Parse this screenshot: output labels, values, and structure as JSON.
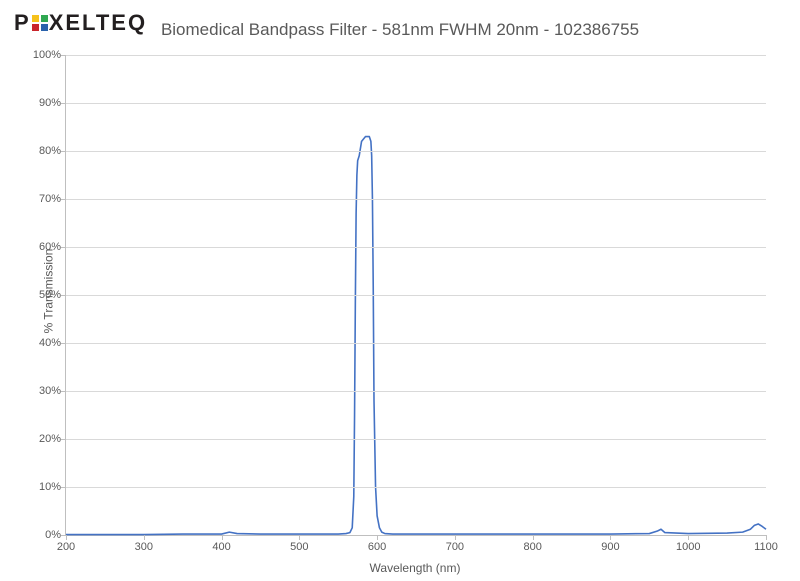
{
  "chart": {
    "type": "line",
    "title": "Biomedical Bandpass Filter - 581nm FWHM 20nm - 102386755",
    "xlabel": "Wavelength (nm)",
    "ylabel": "% Transmission",
    "xlim": [
      200,
      1100
    ],
    "ylim": [
      0,
      100
    ],
    "xtick_step": 100,
    "ytick_step": 10,
    "tick_fontsize": 11,
    "label_fontsize": 12,
    "title_fontsize": 17,
    "background_color": "#ffffff",
    "grid_color": "#d9d9d9",
    "axis_color": "#bfbfbf",
    "text_color": "#595959",
    "series": [
      {
        "name": "transmission",
        "color": "#4472c4",
        "line_width": 1.6,
        "x": [
          200,
          250,
          300,
          350,
          400,
          410,
          420,
          450,
          500,
          550,
          560,
          565,
          568,
          570,
          571,
          572,
          573,
          574,
          575,
          577,
          580,
          585,
          590,
          592,
          593,
          594,
          595,
          596,
          598,
          600,
          603,
          606,
          610,
          620,
          650,
          700,
          750,
          800,
          850,
          900,
          950,
          960,
          965,
          970,
          1000,
          1050,
          1070,
          1080,
          1085,
          1090,
          1095,
          1100
        ],
        "y": [
          0.1,
          0.1,
          0.1,
          0.2,
          0.2,
          0.6,
          0.3,
          0.2,
          0.2,
          0.2,
          0.3,
          0.5,
          1.5,
          8,
          25,
          48,
          67,
          75,
          78,
          79,
          82,
          83,
          83,
          82,
          79,
          70,
          52,
          28,
          10,
          4,
          1.5,
          0.6,
          0.3,
          0.2,
          0.2,
          0.2,
          0.2,
          0.2,
          0.2,
          0.2,
          0.3,
          0.8,
          1.2,
          0.5,
          0.3,
          0.4,
          0.6,
          1.2,
          2.0,
          2.3,
          1.8,
          1.2
        ]
      }
    ]
  },
  "logo": {
    "brand": "PIXELTEQ",
    "prefix": "P",
    "suffix": "XELTEQ",
    "square_colors": [
      "#f6c21b",
      "#2fa851",
      "#c9252c",
      "#2a62ac"
    ]
  }
}
